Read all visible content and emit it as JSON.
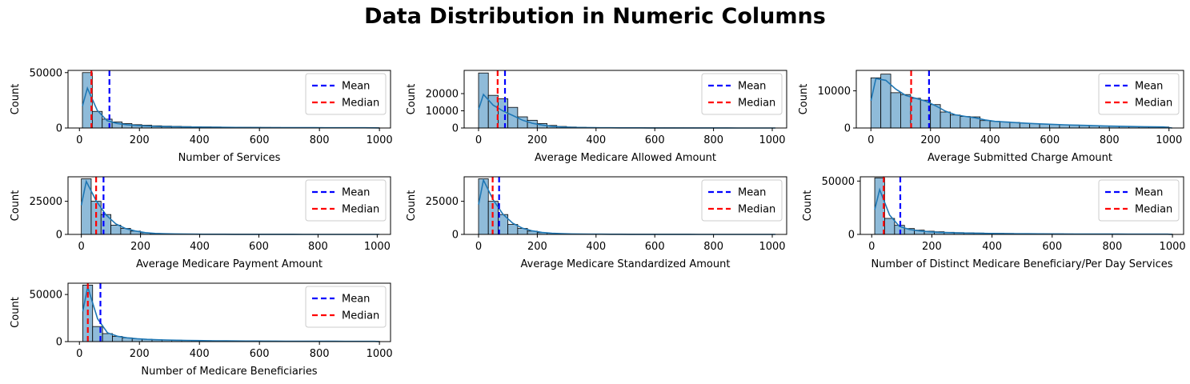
{
  "suptitle": "Data Distribution in Numeric Columns",
  "legend_labels": {
    "mean": "Mean",
    "median": "Median"
  },
  "colors": {
    "bar_fill": "#8fbbd9",
    "kde": "#1f77b4",
    "mean": "#0000ff",
    "median": "#ff0000"
  },
  "chart_data": [
    {
      "type": "bar",
      "title": "",
      "xlabel": "Number of Services",
      "ylabel": "Count",
      "xlim": [
        -38,
        1037
      ],
      "ylim": [
        0,
        52000
      ],
      "xticks": [
        0,
        200,
        400,
        600,
        800,
        1000
      ],
      "yticks": [
        0,
        50000
      ],
      "bin_start": 10,
      "bin_width": 33,
      "values": [
        50000,
        15000,
        8000,
        5500,
        4000,
        3000,
        2500,
        2000,
        1700,
        1500,
        1300,
        1100,
        1000,
        900,
        800,
        700,
        650,
        600,
        550,
        500,
        450,
        400,
        380,
        360,
        340,
        320,
        300,
        280,
        260,
        240
      ],
      "kde_peak": 36000,
      "mean": 100,
      "median": 40,
      "legend": "upper right",
      "grid": false
    },
    {
      "type": "bar",
      "title": "",
      "xlabel": "Average Medicare Allowed Amount",
      "ylabel": "Count",
      "xlim": [
        -49,
        1049
      ],
      "ylim": [
        0,
        33500
      ],
      "xticks": [
        0,
        200,
        400,
        600,
        800,
        1000
      ],
      "yticks": [
        0,
        10000,
        20000
      ],
      "bin_start": 0,
      "bin_width": 33.3,
      "values": [
        32000,
        19000,
        17000,
        12000,
        6500,
        4500,
        2600,
        1500,
        900,
        600,
        400,
        300,
        250,
        200,
        180,
        150,
        130,
        110,
        100,
        90,
        80,
        70,
        60,
        50,
        45,
        40,
        35,
        30,
        25,
        20
      ],
      "kde_peak": 19500,
      "mean": 90,
      "median": 65,
      "legend": "upper right",
      "grid": false
    },
    {
      "type": "bar",
      "title": "",
      "xlabel": "Average Submitted Charge Amount",
      "ylabel": "Count",
      "xlim": [
        -49,
        1049
      ],
      "ylim": [
        0,
        15500
      ],
      "xticks": [
        0,
        200,
        400,
        600,
        800,
        1000
      ],
      "yticks": [
        0,
        10000
      ],
      "bin_start": 0,
      "bin_width": 33.3,
      "values": [
        13500,
        14500,
        9500,
        9000,
        8000,
        7500,
        6300,
        4300,
        3500,
        3100,
        3000,
        2000,
        1800,
        1650,
        1500,
        1300,
        1200,
        1050,
        950,
        850,
        800,
        700,
        650,
        550,
        500,
        450,
        400,
        350,
        300,
        280
      ],
      "kde_peak": 14300,
      "mean": 195,
      "median": 135,
      "legend": "upper right",
      "grid": false
    },
    {
      "type": "bar",
      "title": "",
      "xlabel": "Average Medicare Payment Amount",
      "ylabel": "Count",
      "xlim": [
        -45,
        1045
      ],
      "ylim": [
        0,
        43500
      ],
      "xticks": [
        0,
        200,
        400,
        600,
        800,
        1000
      ],
      "yticks": [
        0,
        25000
      ],
      "bin_start": 0,
      "bin_width": 33.3,
      "values": [
        42000,
        25000,
        15000,
        7000,
        4500,
        2500,
        1200,
        700,
        500,
        350,
        250,
        200,
        150,
        120,
        100,
        80,
        70,
        60,
        50,
        45,
        40,
        35,
        30,
        25,
        20,
        20,
        15,
        15,
        10,
        10
      ],
      "kde_peak": 40000,
      "mean": 75,
      "median": 50,
      "legend": "upper right",
      "grid": false
    },
    {
      "type": "bar",
      "title": "",
      "xlabel": "Average Medicare Standardized Amount",
      "ylabel": "Count",
      "xlim": [
        -49,
        1049
      ],
      "ylim": [
        0,
        43500
      ],
      "xticks": [
        0,
        200,
        400,
        600,
        800,
        1000
      ],
      "yticks": [
        0,
        25000
      ],
      "bin_start": 0,
      "bin_width": 33.3,
      "values": [
        42000,
        25000,
        15000,
        7500,
        4500,
        2500,
        1300,
        800,
        500,
        350,
        250,
        200,
        150,
        120,
        100,
        80,
        70,
        60,
        50,
        45,
        40,
        35,
        30,
        25,
        20,
        20,
        15,
        15,
        10,
        10
      ],
      "kde_peak": 41000,
      "mean": 70,
      "median": 48,
      "legend": "upper right",
      "grid": false
    },
    {
      "type": "bar",
      "title": "",
      "xlabel": "Number of Distinct Medicare Beneficiary/Per Day Services",
      "ylabel": "Count",
      "xlim": [
        -38,
        1037
      ],
      "ylim": [
        0,
        54000
      ],
      "xticks": [
        0,
        200,
        400,
        600,
        800,
        1000
      ],
      "yticks": [
        0,
        50000
      ],
      "bin_start": 10,
      "bin_width": 33,
      "values": [
        53000,
        15000,
        8500,
        5500,
        4000,
        3000,
        2500,
        2000,
        1700,
        1500,
        1300,
        1100,
        1000,
        900,
        800,
        700,
        650,
        600,
        550,
        500,
        450,
        400,
        380,
        360,
        340,
        320,
        300,
        280,
        260,
        240
      ],
      "kde_peak": 42000,
      "mean": 95,
      "median": 40,
      "legend": "upper right",
      "grid": false
    },
    {
      "type": "bar",
      "title": "",
      "xlabel": "Number of Medicare Beneficiaries",
      "ylabel": "Count",
      "xlim": [
        -38,
        1037
      ],
      "ylim": [
        0,
        62000
      ],
      "xticks": [
        0,
        200,
        400,
        600,
        800,
        1000
      ],
      "yticks": [
        0,
        50000
      ],
      "bin_start": 11,
      "bin_width": 33,
      "values": [
        60000,
        16000,
        8500,
        5500,
        4000,
        3000,
        2500,
        2000,
        1700,
        1500,
        1300,
        1100,
        1000,
        900,
        800,
        700,
        650,
        600,
        550,
        500,
        450,
        400,
        380,
        360,
        340,
        320,
        300,
        280,
        260,
        240
      ],
      "kde_peak": 58000,
      "mean": 70,
      "median": 28,
      "legend": "upper right",
      "grid": false
    }
  ]
}
